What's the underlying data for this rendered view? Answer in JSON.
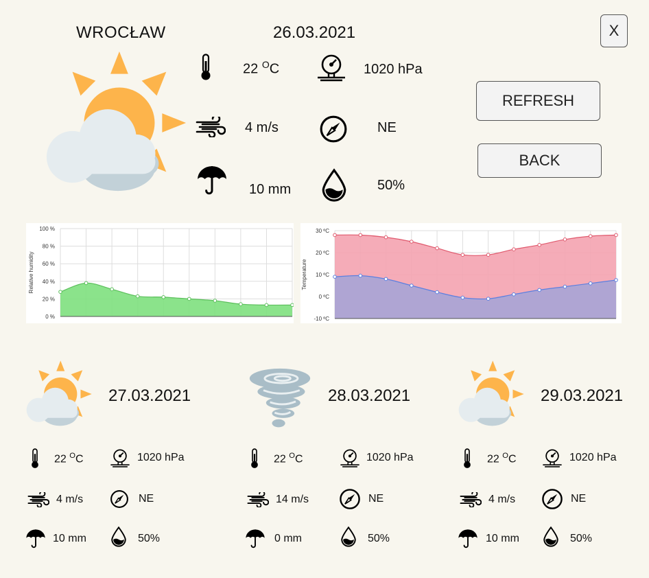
{
  "current": {
    "city": "WROCŁAW",
    "date": "26.03.2021",
    "temperature_value": "22",
    "temperature_unit": "C",
    "degree": "O",
    "pressure": "1020 hPa",
    "wind": "4 m/s",
    "direction": "NE",
    "rain": "10 mm",
    "humidity": "50%",
    "icon": "sun-cloud-icon"
  },
  "buttons": {
    "close": "X",
    "refresh": "REFRESH",
    "back": "BACK"
  },
  "chart_data": [
    {
      "type": "area",
      "ylabel": "Relative humidity",
      "y_ticks": [
        "100 %",
        "80 %",
        "60 %",
        "40 %",
        "20 %",
        "0 %"
      ],
      "ylim": [
        0,
        100
      ],
      "x": [
        0,
        1,
        2,
        3,
        4,
        5,
        6,
        7,
        8,
        9
      ],
      "series": [
        {
          "values": [
            28,
            38,
            31,
            23,
            22,
            20,
            18,
            14,
            13,
            13
          ],
          "color": "#7ee07e"
        }
      ],
      "grid": true
    },
    {
      "type": "area",
      "ylabel": "Temperature",
      "y_ticks": [
        "30 ºC",
        "20 ºC",
        "10 ºC",
        "0 ºC",
        "-10 ºC"
      ],
      "ylim": [
        -10,
        30
      ],
      "x": [
        0,
        1,
        2,
        3,
        4,
        5,
        6,
        7,
        8,
        9,
        10,
        11
      ],
      "series": [
        {
          "values": [
            28,
            28,
            27,
            25,
            22,
            19,
            19,
            21.5,
            23.5,
            26,
            27.5,
            28
          ],
          "color": "#f4a3b0",
          "line": "#e05a6e"
        },
        {
          "values": [
            9,
            9.5,
            8,
            5,
            2,
            -0.5,
            -1,
            1,
            3,
            4.5,
            6,
            7.5
          ],
          "color": "#a7a4d6",
          "line": "#5b7fe0"
        }
      ],
      "grid": true
    }
  ],
  "forecast": [
    {
      "date": "27.03.2021",
      "icon": "sun-cloud-icon",
      "temperature_value": "22",
      "temperature_unit": "C",
      "degree": "O",
      "pressure": "1020 hPa",
      "wind": "4 m/s",
      "direction": "NE",
      "rain": "10 mm",
      "humidity": "50%"
    },
    {
      "date": "28.03.2021",
      "icon": "tornado-icon",
      "temperature_value": "22",
      "temperature_unit": "C",
      "degree": "O",
      "pressure": "1020 hPa",
      "wind": "14 m/s",
      "direction": "NE",
      "rain": "0 mm",
      "humidity": "50%"
    },
    {
      "date": "29.03.2021",
      "icon": "sun-cloud-icon",
      "temperature_value": "22",
      "temperature_unit": "C",
      "degree": "O",
      "pressure": "1020 hPa",
      "wind": "4 m/s",
      "direction": "NE",
      "rain": "10 mm",
      "humidity": "50%"
    }
  ]
}
